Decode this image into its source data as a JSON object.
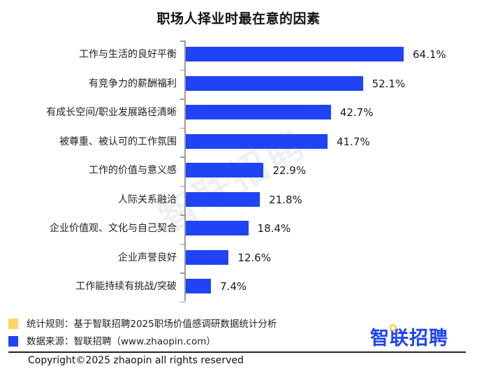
{
  "title": "职场人择业时最在意的因素",
  "watermark": "智联招聘",
  "chart_data": {
    "type": "bar",
    "orientation": "horizontal",
    "title": "职场人择业时最在意的因素",
    "xlabel": "",
    "ylabel": "",
    "grid": false,
    "categories": [
      "工作与生活的良好平衡",
      "有竞争力的薪酬福利",
      "有成长空间/职业发展路径清晰",
      "被尊重、被认可的工作氛围",
      "工作的价值与意义感",
      "人际关系融洽",
      "企业价值观、文化与自己契合",
      "企业声誉良好",
      "工作能持续有挑战/突破"
    ],
    "values": [
      64.1,
      52.1,
      42.7,
      41.7,
      22.9,
      21.8,
      18.4,
      12.6,
      7.4
    ],
    "value_labels": [
      "64.1%",
      "52.1%",
      "42.7%",
      "41.7%",
      "22.9%",
      "21.8%",
      "18.4%",
      "12.6%",
      "7.4%"
    ],
    "unit": "%",
    "bar_color": "#1f43f5"
  },
  "notes": {
    "rule": {
      "label": "统计规则：基于智联招聘2025职场价值感调研数据统计分析",
      "color": "#ffd566"
    },
    "source": {
      "label": "数据来源：智联招聘（www.zhaopin.com）",
      "color": "#1f43f5"
    }
  },
  "brand": "智联招聘",
  "copyright": "Copyright©2025 zhaopin all rights reserved"
}
